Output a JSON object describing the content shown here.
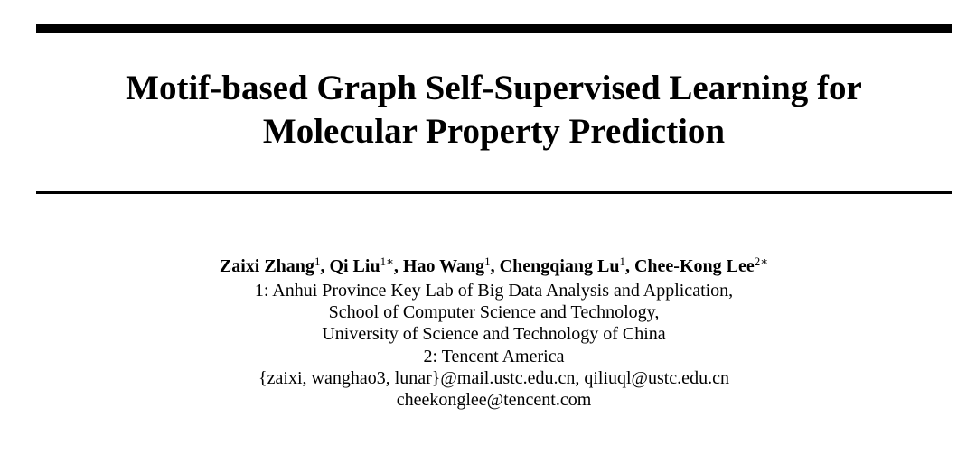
{
  "paper": {
    "title_lines": [
      "Motif-based Graph Self-Supervised Learning for",
      "Molecular Property Prediction"
    ],
    "authors": [
      {
        "name": "Zaixi Zhang",
        "mark": "1"
      },
      {
        "name": "Qi Liu",
        "mark": "1∗"
      },
      {
        "name": "Hao Wang",
        "mark": "1"
      },
      {
        "name": "Chengqiang Lu",
        "mark": "1"
      },
      {
        "name": "Chee-Kong Lee",
        "mark": "2∗"
      }
    ],
    "separator": ", ",
    "affiliation_lines": [
      "1: Anhui Province Key Lab of Big Data Analysis and Application,",
      "School of Computer Science and Technology,",
      "University of Science and Technology of China",
      "2: Tencent America",
      "{zaixi, wanghao3, lunar}@mail.ustc.edu.cn, qiliuql@ustc.edu.cn",
      "cheekonglee@tencent.com"
    ]
  }
}
